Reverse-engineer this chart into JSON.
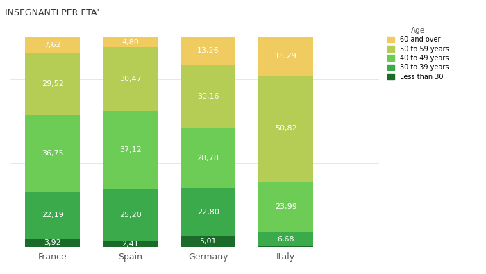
{
  "title": "INSEGNANTI PER ETA'",
  "categories": [
    "France",
    "Spain",
    "Germany",
    "Italy"
  ],
  "segments": [
    {
      "label": "Less than 30",
      "color": "#1a6b2a",
      "values": [
        3.92,
        2.41,
        5.01,
        0.22
      ]
    },
    {
      "label": "30 to 39 years",
      "color": "#3aaa4a",
      "values": [
        22.19,
        25.2,
        22.8,
        6.68
      ]
    },
    {
      "label": "40 to 49 years",
      "color": "#6dcc55",
      "values": [
        36.75,
        37.12,
        28.78,
        23.99
      ]
    },
    {
      "label": "50 to 59 years",
      "color": "#b5cc55",
      "values": [
        29.52,
        30.47,
        30.16,
        50.82
      ]
    },
    {
      "label": "60 and over",
      "color": "#f0cc60",
      "values": [
        7.62,
        4.8,
        13.26,
        18.29
      ]
    }
  ],
  "legend_title": "Age",
  "background_color": "#ffffff",
  "plot_bg_color": "#ffffff",
  "bar_width": 0.7,
  "x_positions": [
    0,
    1,
    2,
    3
  ],
  "xlim": [
    -0.55,
    4.2
  ],
  "ylim": [
    0,
    102
  ],
  "label_color_dark": "#ffffff",
  "label_color_light": "#333333",
  "title_fontsize": 9,
  "tick_fontsize": 9,
  "label_fontsize": 8
}
